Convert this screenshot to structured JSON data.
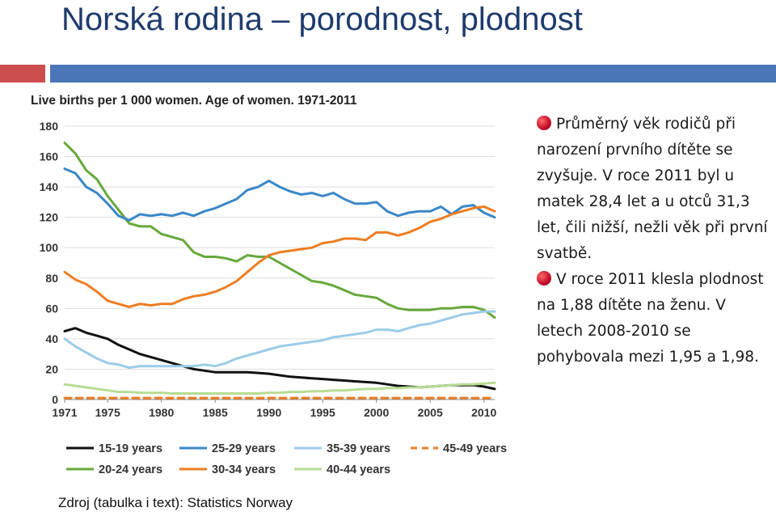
{
  "slide": {
    "title": "Norská rodina – porodnost, plodnost",
    "source": "Zdroj (tabulka i text): Statistics Norway"
  },
  "bullets": [
    {
      "icon": "red-bullet-icon",
      "text": "Průměrný věk rodičů při narození prvního dítěte se zvyšuje. V roce 2011 byl u matek 28,4 let a u otců 31,3 let, čili nižší, nežli věk při první svatbě."
    },
    {
      "icon": "red-bullet-icon",
      "text": "V roce 2011 klesla plodnost na 1,88 dítěte na ženu. V letech 2008-2010 se pohybovala mezi 1,95 a 1,98."
    }
  ],
  "chart_data": {
    "type": "line",
    "title": "Live births per 1 000 women. Age of women. 1971-2011",
    "xlabel": "",
    "ylabel": "",
    "xlim": [
      1971,
      2011
    ],
    "ylim": [
      0,
      180
    ],
    "x_ticks": [
      "1971",
      "1975",
      "1980",
      "1985",
      "1990",
      "1995",
      "2000",
      "2005",
      "2010"
    ],
    "y_ticks": [
      "0",
      "20",
      "40",
      "60",
      "80",
      "100",
      "120",
      "140",
      "160",
      "180"
    ],
    "grid": "horizontal",
    "legend_position": "bottom",
    "x": [
      1971,
      1972,
      1973,
      1974,
      1975,
      1976,
      1977,
      1978,
      1979,
      1980,
      1981,
      1982,
      1983,
      1984,
      1985,
      1986,
      1987,
      1988,
      1989,
      1990,
      1991,
      1992,
      1993,
      1994,
      1995,
      1996,
      1997,
      1998,
      1999,
      2000,
      2001,
      2002,
      2003,
      2004,
      2005,
      2006,
      2007,
      2008,
      2009,
      2010,
      2011
    ],
    "series": [
      {
        "name": "15-19 years",
        "color": "#111111",
        "dashed": false,
        "values": [
          45,
          47,
          44,
          42,
          40,
          36,
          33,
          30,
          28,
          26,
          24,
          22,
          20,
          19,
          18,
          18,
          18,
          18,
          17.5,
          17,
          16,
          15,
          14.5,
          14,
          13.5,
          13,
          12.5,
          12,
          11.5,
          11,
          10,
          9,
          8.5,
          8,
          8.5,
          9,
          9.5,
          9.5,
          9.5,
          8.5,
          7
        ]
      },
      {
        "name": "20-24 years",
        "color": "#66a93a",
        "dashed": false,
        "values": [
          169,
          162,
          151,
          145,
          134,
          125,
          116,
          114,
          114,
          109,
          107,
          105,
          97,
          94,
          94,
          93,
          91,
          95,
          94,
          94,
          90,
          86,
          82,
          78,
          77,
          75,
          72,
          69,
          68,
          67,
          63,
          60,
          59,
          59,
          59,
          60,
          60,
          61,
          61,
          59,
          54
        ]
      },
      {
        "name": "25-29 years",
        "color": "#3a88c8",
        "dashed": false,
        "values": [
          152,
          149,
          140,
          136,
          129,
          121,
          118,
          122,
          121,
          122,
          121,
          123,
          121,
          124,
          126,
          129,
          132,
          138,
          140,
          144,
          140,
          137,
          135,
          136,
          134,
          136,
          132,
          129,
          129,
          130,
          124,
          121,
          123,
          124,
          124,
          127,
          122,
          127,
          128,
          123,
          120
        ]
      },
      {
        "name": "30-34 years",
        "color": "#ee7d22",
        "dashed": false,
        "values": [
          84,
          79,
          76,
          71,
          65,
          63,
          61,
          63,
          62,
          63,
          63,
          66,
          68,
          69,
          71,
          74,
          78,
          84,
          90,
          95,
          97,
          98,
          99,
          100,
          103,
          104,
          106,
          106,
          105,
          110,
          110,
          108,
          110,
          113,
          117,
          119,
          122,
          124,
          126,
          127,
          124
        ]
      },
      {
        "name": "35-39 years",
        "color": "#9ccbe8",
        "dashed": false,
        "values": [
          40,
          35,
          31,
          27,
          24,
          23,
          21,
          22,
          22,
          22,
          22,
          22,
          22,
          23,
          22,
          24,
          27,
          29,
          31,
          33,
          35,
          36,
          37,
          38,
          39,
          41,
          42,
          43,
          44,
          46,
          46,
          45,
          47,
          49,
          50,
          52,
          54,
          56,
          57,
          58,
          58
        ]
      },
      {
        "name": "40-44 years",
        "color": "#b7dc93",
        "dashed": false,
        "values": [
          10,
          9,
          8,
          7,
          6,
          5,
          5,
          4.5,
          4.5,
          4.5,
          4,
          4,
          4,
          4,
          4,
          4,
          4,
          4,
          4,
          4.5,
          4.5,
          5,
          5,
          5.5,
          5.5,
          6,
          6,
          6.5,
          7,
          7,
          7.5,
          7.5,
          8,
          8,
          8.5,
          9,
          9.5,
          10,
          10,
          10.5,
          11
        ]
      },
      {
        "name": "45-49 years",
        "color": "#ee7d22",
        "dashed": true,
        "values": [
          1,
          1,
          1,
          1,
          1,
          1,
          1,
          1,
          1,
          1,
          1,
          1,
          1,
          1,
          1,
          1,
          1,
          1,
          1,
          1,
          1,
          1,
          1,
          1,
          1,
          1,
          1,
          1,
          1,
          1,
          1,
          1,
          1,
          1,
          1,
          1,
          1,
          1,
          1,
          1,
          1
        ]
      }
    ],
    "legend_order": [
      "15-19 years",
      "25-29 years",
      "35-39 years",
      "45-49 years",
      "20-24 years",
      "30-34 years",
      "40-44 years"
    ]
  },
  "colors": {
    "title": "#1f3b6e",
    "bar_red": "#cc4d4d",
    "bar_blue": "#4a76b8",
    "bullet": "#c8102e"
  }
}
